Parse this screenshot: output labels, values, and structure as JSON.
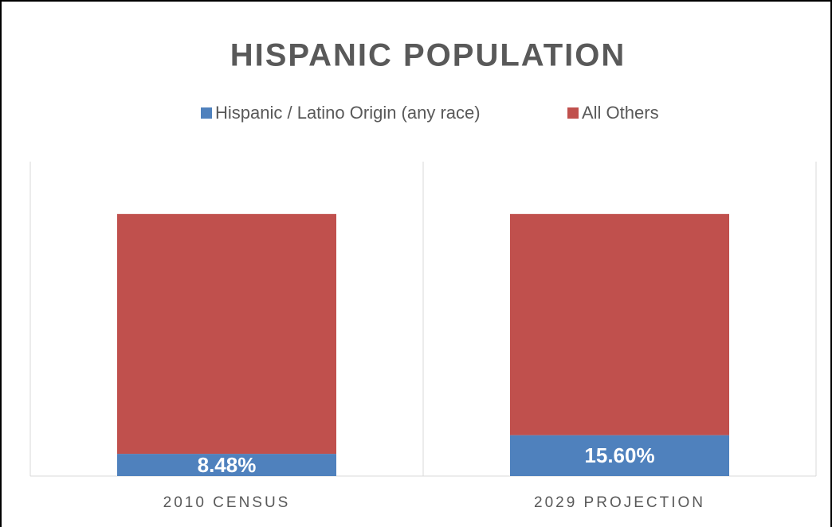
{
  "chart_data": {
    "type": "stacked-bar",
    "title": "HISPANIC POPULATION",
    "categories": [
      "2010 CENSUS",
      "2029 PROJECTION"
    ],
    "series": [
      {
        "name": "Hispanic / Latino Origin (any race)",
        "color": "#4f81bd",
        "values": [
          8.48,
          15.6
        ],
        "value_labels": [
          "8.48%",
          "15.60%"
        ]
      },
      {
        "name": "All Others",
        "color": "#c0504d",
        "values": [
          91.52,
          84.4
        ]
      }
    ],
    "ylim": [
      0,
      120
    ]
  }
}
